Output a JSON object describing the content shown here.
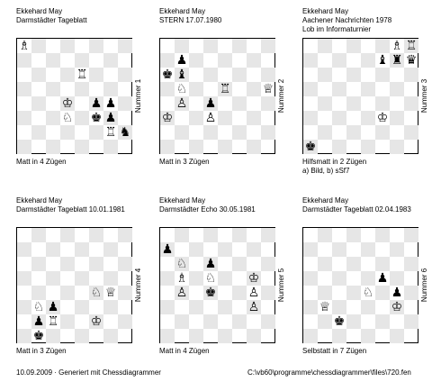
{
  "problems": [
    {
      "header": [
        "Ekkehard May",
        "Darmstädter Tageblatt"
      ],
      "label": "Nummer 1",
      "footer": [
        "Matt in 4 Zügen"
      ],
      "pieces": [
        {
          "f": 0,
          "r": 7,
          "p": "♗",
          "c": "w"
        },
        {
          "f": 4,
          "r": 5,
          "p": "♖",
          "c": "w"
        },
        {
          "f": 3,
          "r": 3,
          "p": "♔",
          "c": "w"
        },
        {
          "f": 5,
          "r": 3,
          "p": "♟",
          "c": "b"
        },
        {
          "f": 6,
          "r": 3,
          "p": "♟",
          "c": "b"
        },
        {
          "f": 3,
          "r": 2,
          "p": "♘",
          "c": "w"
        },
        {
          "f": 5,
          "r": 2,
          "p": "♚",
          "c": "b"
        },
        {
          "f": 6,
          "r": 2,
          "p": "♟",
          "c": "b"
        },
        {
          "f": 6,
          "r": 1,
          "p": "♖",
          "c": "w"
        },
        {
          "f": 7,
          "r": 1,
          "p": "♞",
          "c": "b"
        }
      ]
    },
    {
      "header": [
        "Ekkehard May",
        "STERN 17.07.1980"
      ],
      "label": "Nummer 2",
      "footer": [
        "Matt in 3 Zügen"
      ],
      "pieces": [
        {
          "f": 1,
          "r": 6,
          "p": "♟",
          "c": "b"
        },
        {
          "f": 0,
          "r": 5,
          "p": "♚",
          "c": "b"
        },
        {
          "f": 1,
          "r": 5,
          "p": "♝",
          "c": "b"
        },
        {
          "f": 1,
          "r": 4,
          "p": "♘",
          "c": "w"
        },
        {
          "f": 4,
          "r": 4,
          "p": "♖",
          "c": "w"
        },
        {
          "f": 7,
          "r": 4,
          "p": "♕",
          "c": "w"
        },
        {
          "f": 1,
          "r": 3,
          "p": "♙",
          "c": "w"
        },
        {
          "f": 3,
          "r": 3,
          "p": "♟",
          "c": "b"
        },
        {
          "f": 0,
          "r": 2,
          "p": "♔",
          "c": "w"
        },
        {
          "f": 3,
          "r": 2,
          "p": "♙",
          "c": "w"
        }
      ]
    },
    {
      "header": [
        "Ekkehard May",
        "Aachener Nachrichten 1978",
        "Lob im Informaturnier"
      ],
      "label": "Nummer 3",
      "footer": [
        "Hilfsmatt in 2 Zügen",
        "a) Bild, b) sSf7"
      ],
      "pieces": [
        {
          "f": 6,
          "r": 7,
          "p": "♗",
          "c": "w"
        },
        {
          "f": 7,
          "r": 7,
          "p": "♖",
          "c": "w"
        },
        {
          "f": 5,
          "r": 6,
          "p": "♝",
          "c": "b"
        },
        {
          "f": 6,
          "r": 6,
          "p": "♜",
          "c": "b"
        },
        {
          "f": 7,
          "r": 6,
          "p": "♛",
          "c": "b"
        },
        {
          "f": 5,
          "r": 2,
          "p": "♔",
          "c": "w"
        },
        {
          "f": 0,
          "r": 0,
          "p": "♚",
          "c": "b"
        }
      ]
    },
    {
      "header": [
        "Ekkehard May",
        "Darmstädter Tageblatt 10.01.1981"
      ],
      "label": "Nummer 4",
      "footer": [
        "Matt in 3 Zügen"
      ],
      "pieces": [
        {
          "f": 5,
          "r": 3,
          "p": "♘",
          "c": "w"
        },
        {
          "f": 6,
          "r": 3,
          "p": "♕",
          "c": "w"
        },
        {
          "f": 1,
          "r": 2,
          "p": "♘",
          "c": "w"
        },
        {
          "f": 2,
          "r": 2,
          "p": "♟",
          "c": "b"
        },
        {
          "f": 1,
          "r": 1,
          "p": "♟",
          "c": "b"
        },
        {
          "f": 2,
          "r": 1,
          "p": "♖",
          "c": "w"
        },
        {
          "f": 5,
          "r": 1,
          "p": "♔",
          "c": "w"
        },
        {
          "f": 1,
          "r": 0,
          "p": "♚",
          "c": "b"
        }
      ]
    },
    {
      "header": [
        "Ekkehard May",
        "Darmstädter Echo 30.05.1981"
      ],
      "label": "Nummer 5",
      "footer": [
        "Matt in 4 Zügen"
      ],
      "pieces": [
        {
          "f": 0,
          "r": 6,
          "p": "♟",
          "c": "b"
        },
        {
          "f": 1,
          "r": 5,
          "p": "♘",
          "c": "w"
        },
        {
          "f": 3,
          "r": 5,
          "p": "♟",
          "c": "b"
        },
        {
          "f": 1,
          "r": 4,
          "p": "♗",
          "c": "w"
        },
        {
          "f": 3,
          "r": 4,
          "p": "♘",
          "c": "w"
        },
        {
          "f": 6,
          "r": 4,
          "p": "♔",
          "c": "w"
        },
        {
          "f": 1,
          "r": 3,
          "p": "♙",
          "c": "w"
        },
        {
          "f": 3,
          "r": 3,
          "p": "♚",
          "c": "b"
        },
        {
          "f": 6,
          "r": 3,
          "p": "♙",
          "c": "w"
        },
        {
          "f": 6,
          "r": 2,
          "p": "♙",
          "c": "w"
        }
      ]
    },
    {
      "header": [
        "Ekkehard May",
        "Darmstädter Tageblatt 02.04.1983"
      ],
      "label": "Nummer 6",
      "footer": [
        "Selbstatt in 7 Zügen"
      ],
      "pieces": [
        {
          "f": 5,
          "r": 4,
          "p": "♟",
          "c": "b"
        },
        {
          "f": 4,
          "r": 3,
          "p": "♘",
          "c": "w"
        },
        {
          "f": 6,
          "r": 3,
          "p": "♟",
          "c": "b"
        },
        {
          "f": 1,
          "r": 2,
          "p": "♕",
          "c": "w"
        },
        {
          "f": 6,
          "r": 2,
          "p": "♔",
          "c": "w"
        },
        {
          "f": 2,
          "r": 1,
          "p": "♚",
          "c": "b"
        }
      ]
    }
  ],
  "footer": {
    "left": "10.09.2009 · Generiert mit Chessdiagrammer",
    "right": "C:\\vb60\\programme\\chessdiagrammer\\files\\720.fen"
  }
}
